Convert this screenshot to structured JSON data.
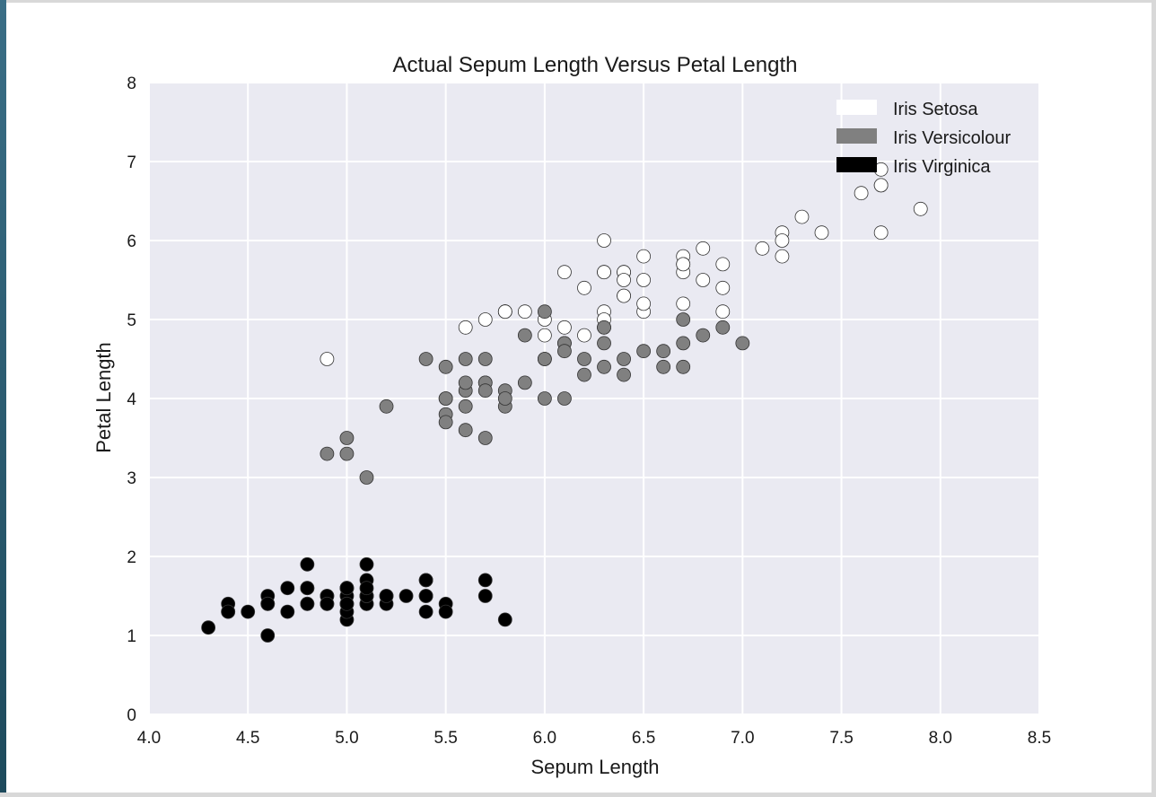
{
  "chart_data": {
    "type": "scatter",
    "title": "Actual Sepum Length Versus Petal Length",
    "xlabel": "Sepum Length",
    "ylabel": "Petal Length",
    "xlim": [
      4.0,
      8.5
    ],
    "ylim": [
      0,
      8
    ],
    "xticks": [
      "4.0",
      "4.5",
      "5.0",
      "5.5",
      "6.0",
      "6.5",
      "7.0",
      "7.5",
      "8.0",
      "8.5"
    ],
    "yticks": [
      "0",
      "1",
      "2",
      "3",
      "4",
      "5",
      "6",
      "7",
      "8"
    ],
    "grid": true,
    "legend_position": "top-right",
    "background": "#eaeaf2",
    "series": [
      {
        "name": "Iris Setosa",
        "color": "#ffffff",
        "points": [
          [
            6.3,
            6.0
          ],
          [
            5.8,
            5.1
          ],
          [
            7.1,
            5.9
          ],
          [
            6.3,
            5.6
          ],
          [
            6.5,
            5.8
          ],
          [
            7.6,
            6.6
          ],
          [
            4.9,
            4.5
          ],
          [
            7.3,
            6.3
          ],
          [
            6.7,
            5.8
          ],
          [
            7.2,
            6.1
          ],
          [
            6.5,
            5.1
          ],
          [
            6.4,
            5.3
          ],
          [
            6.8,
            5.5
          ],
          [
            5.7,
            5.0
          ],
          [
            5.8,
            5.1
          ],
          [
            6.4,
            5.3
          ],
          [
            6.5,
            5.5
          ],
          [
            7.7,
            6.7
          ],
          [
            7.7,
            6.9
          ],
          [
            6.0,
            5.0
          ],
          [
            6.9,
            5.7
          ],
          [
            5.6,
            4.9
          ],
          [
            7.7,
            6.7
          ],
          [
            6.3,
            4.9
          ],
          [
            6.7,
            5.7
          ],
          [
            7.2,
            6.0
          ],
          [
            6.2,
            4.8
          ],
          [
            6.1,
            4.9
          ],
          [
            6.4,
            5.6
          ],
          [
            7.2,
            5.8
          ],
          [
            7.4,
            6.1
          ],
          [
            7.9,
            6.4
          ],
          [
            6.4,
            5.6
          ],
          [
            6.3,
            5.1
          ],
          [
            6.1,
            5.6
          ],
          [
            7.7,
            6.1
          ],
          [
            6.3,
            5.6
          ],
          [
            6.4,
            5.5
          ],
          [
            6.0,
            4.8
          ],
          [
            6.9,
            5.4
          ],
          [
            6.7,
            5.6
          ],
          [
            6.9,
            5.1
          ],
          [
            5.8,
            5.1
          ],
          [
            6.8,
            5.9
          ],
          [
            6.7,
            5.7
          ],
          [
            6.7,
            5.2
          ],
          [
            6.3,
            5.0
          ],
          [
            6.5,
            5.2
          ],
          [
            6.2,
            5.4
          ],
          [
            5.9,
            5.1
          ]
        ]
      },
      {
        "name": "Iris Versicolour",
        "color": "#808080",
        "points": [
          [
            7.0,
            4.7
          ],
          [
            6.4,
            4.5
          ],
          [
            6.9,
            4.9
          ],
          [
            5.5,
            4.0
          ],
          [
            6.5,
            4.6
          ],
          [
            5.7,
            4.5
          ],
          [
            6.3,
            4.7
          ],
          [
            4.9,
            3.3
          ],
          [
            6.6,
            4.6
          ],
          [
            5.2,
            3.9
          ],
          [
            5.0,
            3.5
          ],
          [
            5.9,
            4.2
          ],
          [
            6.0,
            4.0
          ],
          [
            6.1,
            4.7
          ],
          [
            5.6,
            3.6
          ],
          [
            6.7,
            4.4
          ],
          [
            5.6,
            4.5
          ],
          [
            5.8,
            4.1
          ],
          [
            6.2,
            4.5
          ],
          [
            5.6,
            3.9
          ],
          [
            5.9,
            4.8
          ],
          [
            6.1,
            4.0
          ],
          [
            6.3,
            4.9
          ],
          [
            6.1,
            4.7
          ],
          [
            6.4,
            4.3
          ],
          [
            6.6,
            4.4
          ],
          [
            6.8,
            4.8
          ],
          [
            6.7,
            5.0
          ],
          [
            6.0,
            4.5
          ],
          [
            5.7,
            3.5
          ],
          [
            5.5,
            3.8
          ],
          [
            5.5,
            3.7
          ],
          [
            5.8,
            3.9
          ],
          [
            6.0,
            5.1
          ],
          [
            5.4,
            4.5
          ],
          [
            6.0,
            4.5
          ],
          [
            6.7,
            4.7
          ],
          [
            6.3,
            4.4
          ],
          [
            5.6,
            4.1
          ],
          [
            5.5,
            4.0
          ],
          [
            5.5,
            4.4
          ],
          [
            6.1,
            4.6
          ],
          [
            5.8,
            4.0
          ],
          [
            5.0,
            3.3
          ],
          [
            5.6,
            4.2
          ],
          [
            5.7,
            4.2
          ],
          [
            5.7,
            4.2
          ],
          [
            6.2,
            4.3
          ],
          [
            5.1,
            3.0
          ],
          [
            5.7,
            4.1
          ]
        ]
      },
      {
        "name": "Iris Virginica",
        "color": "#000000",
        "points": [
          [
            5.1,
            1.4
          ],
          [
            4.9,
            1.4
          ],
          [
            4.7,
            1.3
          ],
          [
            4.6,
            1.5
          ],
          [
            5.0,
            1.4
          ],
          [
            5.4,
            1.7
          ],
          [
            4.6,
            1.4
          ],
          [
            5.0,
            1.5
          ],
          [
            4.4,
            1.4
          ],
          [
            4.9,
            1.5
          ],
          [
            5.4,
            1.5
          ],
          [
            4.8,
            1.6
          ],
          [
            4.8,
            1.4
          ],
          [
            4.3,
            1.1
          ],
          [
            5.8,
            1.2
          ],
          [
            5.7,
            1.5
          ],
          [
            5.4,
            1.3
          ],
          [
            5.1,
            1.4
          ],
          [
            5.7,
            1.7
          ],
          [
            5.1,
            1.5
          ],
          [
            5.4,
            1.7
          ],
          [
            5.1,
            1.5
          ],
          [
            4.6,
            1.0
          ],
          [
            5.1,
            1.7
          ],
          [
            4.8,
            1.9
          ],
          [
            5.0,
            1.6
          ],
          [
            5.0,
            1.6
          ],
          [
            5.2,
            1.5
          ],
          [
            5.2,
            1.4
          ],
          [
            4.7,
            1.6
          ],
          [
            4.8,
            1.6
          ],
          [
            5.4,
            1.5
          ],
          [
            5.2,
            1.5
          ],
          [
            5.5,
            1.4
          ],
          [
            4.9,
            1.5
          ],
          [
            5.0,
            1.2
          ],
          [
            5.5,
            1.3
          ],
          [
            4.9,
            1.4
          ],
          [
            4.4,
            1.3
          ],
          [
            5.1,
            1.5
          ],
          [
            5.0,
            1.3
          ],
          [
            4.5,
            1.3
          ],
          [
            4.4,
            1.3
          ],
          [
            5.0,
            1.6
          ],
          [
            5.1,
            1.9
          ],
          [
            4.8,
            1.4
          ],
          [
            5.1,
            1.6
          ],
          [
            4.6,
            1.4
          ],
          [
            5.3,
            1.5
          ],
          [
            5.0,
            1.4
          ]
        ]
      }
    ]
  }
}
